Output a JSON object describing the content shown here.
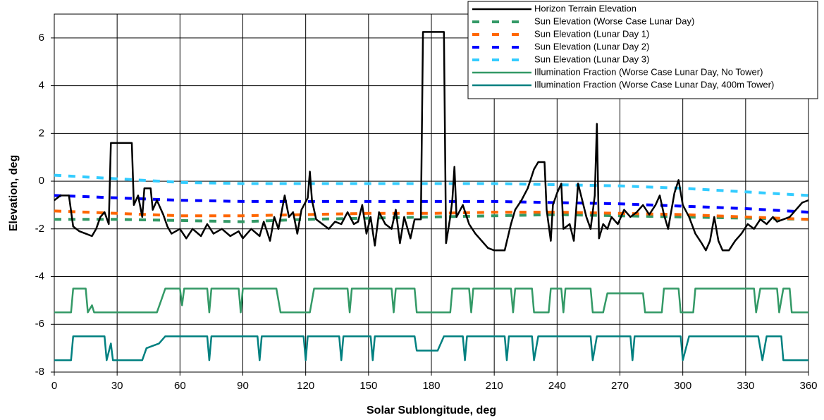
{
  "chart_data": {
    "type": "line",
    "xlabel": "Solar Sublongitude, deg",
    "ylabel": "Elevation, deg",
    "xlim": [
      0,
      360
    ],
    "xticks": [
      0,
      30,
      60,
      90,
      120,
      150,
      180,
      210,
      240,
      270,
      300,
      330,
      360
    ],
    "ylim": [
      -8,
      7
    ],
    "yticks": [
      -8,
      -6,
      -4,
      -2,
      0,
      2,
      4,
      6
    ],
    "grid": true,
    "legend": "upper right",
    "series": [
      {
        "name": "Horizon Terrain Elevation",
        "color": "#000000",
        "style": "solid",
        "x": [
          0,
          3,
          7,
          9,
          12,
          15,
          18,
          20,
          22,
          24,
          26,
          27,
          37,
          38,
          40,
          42,
          43,
          46,
          47,
          49,
          52,
          54,
          56,
          60,
          63,
          66,
          70,
          73,
          76,
          80,
          84,
          88,
          90,
          94,
          98,
          100,
          103,
          105,
          107,
          110,
          112,
          114,
          116,
          118,
          121,
          122,
          123,
          125,
          128,
          131,
          134,
          137,
          140,
          143,
          145,
          147,
          149,
          151,
          153,
          155,
          158,
          161,
          163,
          165,
          167,
          170,
          172,
          175,
          176,
          186,
          187,
          189,
          190,
          191,
          192,
          195,
          198,
          201,
          204,
          207,
          210,
          215,
          218,
          220,
          223,
          226,
          229,
          231,
          234,
          235,
          237,
          238,
          240,
          242,
          243,
          246,
          248,
          250,
          252,
          254,
          256,
          258,
          259,
          260,
          262,
          264,
          266,
          269,
          272,
          275,
          278,
          281,
          284,
          287,
          289,
          291,
          293,
          296,
          298,
          300,
          303,
          306,
          309,
          311,
          313,
          315,
          317,
          319,
          322,
          325,
          328,
          331,
          334,
          337,
          340,
          343,
          345,
          348,
          351,
          354,
          357,
          360
        ],
        "values": [
          -0.8,
          -0.6,
          -0.6,
          -1.9,
          -2.1,
          -2.2,
          -2.3,
          -2.0,
          -1.5,
          -1.3,
          -1.8,
          1.6,
          1.6,
          -1.0,
          -0.6,
          -1.5,
          -0.3,
          -0.3,
          -1.2,
          -0.8,
          -1.4,
          -1.9,
          -2.2,
          -2.0,
          -2.4,
          -2.0,
          -2.3,
          -1.8,
          -2.2,
          -2.0,
          -2.3,
          -2.1,
          -2.4,
          -2.0,
          -2.3,
          -1.7,
          -2.5,
          -1.5,
          -2.0,
          -0.6,
          -1.5,
          -1.3,
          -2.2,
          -1.2,
          -0.7,
          0.4,
          -0.8,
          -1.6,
          -1.8,
          -2.0,
          -1.7,
          -1.8,
          -1.3,
          -1.8,
          -1.7,
          -1.0,
          -2.2,
          -1.5,
          -2.7,
          -1.3,
          -1.8,
          -2.0,
          -1.2,
          -2.6,
          -1.5,
          -2.4,
          -1.6,
          -1.6,
          6.25,
          6.25,
          -2.6,
          -1.5,
          -0.8,
          0.6,
          -1.5,
          -1.0,
          -1.8,
          -2.2,
          -2.5,
          -2.8,
          -2.9,
          -2.9,
          -1.8,
          -1.2,
          -0.8,
          -0.3,
          0.5,
          0.8,
          0.8,
          -1.2,
          -2.5,
          -1.0,
          -0.5,
          -0.1,
          -2.0,
          -1.8,
          -2.5,
          -0.1,
          -0.8,
          -1.5,
          -2.0,
          -0.6,
          2.4,
          -2.4,
          -1.8,
          -2.0,
          -1.5,
          -1.8,
          -1.2,
          -1.5,
          -1.3,
          -1.0,
          -1.4,
          -1.0,
          -0.6,
          -1.4,
          -2.0,
          -0.5,
          0.05,
          -1.0,
          -1.5,
          -2.2,
          -2.6,
          -2.9,
          -2.5,
          -1.5,
          -2.5,
          -2.9,
          -2.9,
          -2.5,
          -2.2,
          -1.8,
          -2.0,
          -1.6,
          -1.8,
          -1.5,
          -1.7,
          -1.6,
          -1.5,
          -1.2,
          -0.9,
          -0.8
        ]
      },
      {
        "name": "Sun Elevation (Worse Case Lunar Day)",
        "color": "#339966",
        "style": "dashed",
        "x": [
          0,
          30,
          60,
          90,
          120,
          150,
          180,
          210,
          240,
          270,
          300,
          330,
          360
        ],
        "values": [
          -1.6,
          -1.6,
          -1.65,
          -1.7,
          -1.6,
          -1.55,
          -1.5,
          -1.45,
          -1.4,
          -1.45,
          -1.5,
          -1.55,
          -1.6
        ]
      },
      {
        "name": "Sun Elevation (Lunar Day 1)",
        "color": "#ff6600",
        "style": "dashed",
        "x": [
          0,
          30,
          60,
          90,
          120,
          150,
          180,
          210,
          240,
          270,
          300,
          330,
          360
        ],
        "values": [
          -1.25,
          -1.35,
          -1.45,
          -1.45,
          -1.4,
          -1.35,
          -1.35,
          -1.3,
          -1.3,
          -1.35,
          -1.4,
          -1.5,
          -1.6
        ]
      },
      {
        "name": "Sun Elevation (Lunar Day 2)",
        "color": "#0000ff",
        "style": "dashed",
        "x": [
          0,
          30,
          60,
          90,
          120,
          150,
          180,
          210,
          240,
          270,
          300,
          330,
          360
        ],
        "values": [
          -0.6,
          -0.7,
          -0.8,
          -0.85,
          -0.85,
          -0.85,
          -0.85,
          -0.85,
          -0.9,
          -0.95,
          -1.05,
          -1.15,
          -1.3
        ]
      },
      {
        "name": "Sun Elevation (Lunar Day 3)",
        "color": "#33ccff",
        "style": "dashed",
        "x": [
          0,
          30,
          60,
          90,
          120,
          150,
          180,
          210,
          240,
          270,
          300,
          330,
          360
        ],
        "values": [
          0.25,
          0.1,
          -0.05,
          -0.1,
          -0.1,
          -0.1,
          -0.1,
          -0.1,
          -0.15,
          -0.2,
          -0.3,
          -0.45,
          -0.6
        ]
      },
      {
        "name": "Illumination Fraction (Worse Case Lunar Day, No Tower)",
        "color": "#339966",
        "style": "solid",
        "x": [
          0,
          8,
          9,
          15,
          16,
          18,
          19,
          49,
          51,
          53,
          60,
          61,
          62,
          73,
          74,
          75,
          88,
          89,
          90,
          106,
          108,
          122,
          124,
          140,
          141,
          142,
          161,
          162,
          163,
          172,
          173,
          189,
          190,
          198,
          199,
          200,
          218,
          219,
          220,
          228,
          229,
          236,
          237,
          242,
          243,
          244,
          256,
          257,
          262,
          264,
          281,
          282,
          290,
          291,
          298,
          299,
          305,
          306,
          334,
          335,
          337,
          345,
          346,
          348,
          351,
          352,
          360
        ],
        "values": [
          -5.5,
          -5.5,
          -4.5,
          -4.5,
          -5.5,
          -5.2,
          -5.5,
          -5.5,
          -5.0,
          -4.5,
          -4.5,
          -5.2,
          -4.5,
          -4.5,
          -5.5,
          -4.5,
          -4.5,
          -5.5,
          -4.5,
          -4.5,
          -5.5,
          -5.5,
          -4.5,
          -4.5,
          -5.5,
          -4.5,
          -4.5,
          -5.5,
          -4.5,
          -4.5,
          -5.5,
          -5.5,
          -4.5,
          -4.5,
          -5.5,
          -4.5,
          -4.5,
          -5.5,
          -4.5,
          -4.5,
          -5.5,
          -5.5,
          -4.5,
          -4.5,
          -5.5,
          -4.5,
          -4.5,
          -5.5,
          -5.5,
          -4.7,
          -4.7,
          -5.5,
          -5.5,
          -4.5,
          -4.5,
          -5.5,
          -5.5,
          -4.5,
          -4.5,
          -5.5,
          -4.5,
          -4.5,
          -5.5,
          -4.5,
          -4.5,
          -5.5,
          -5.5
        ]
      },
      {
        "name": "Illumination Fraction (Worse Case Lunar Day, 400m Tower)",
        "color": "#008080",
        "style": "solid",
        "x": [
          0,
          8,
          9,
          24,
          25,
          27,
          28,
          42,
          44,
          50,
          53,
          73,
          74,
          75,
          97,
          98,
          99,
          119,
          120,
          121,
          136,
          137,
          138,
          151,
          152,
          153,
          172,
          173,
          183,
          186,
          195,
          196,
          197,
          215,
          216,
          217,
          228,
          229,
          231,
          256,
          257,
          259,
          275,
          276,
          277,
          299,
          300,
          303,
          336,
          338,
          340,
          347,
          348,
          360
        ],
        "values": [
          -7.5,
          -7.5,
          -6.5,
          -6.5,
          -7.5,
          -6.8,
          -7.5,
          -7.5,
          -7.0,
          -6.8,
          -6.5,
          -6.5,
          -7.5,
          -6.5,
          -6.5,
          -7.5,
          -6.5,
          -6.5,
          -7.5,
          -6.5,
          -6.5,
          -7.5,
          -6.5,
          -6.5,
          -7.5,
          -6.5,
          -6.5,
          -7.1,
          -7.1,
          -6.5,
          -6.5,
          -7.5,
          -6.5,
          -6.5,
          -7.5,
          -6.5,
          -6.5,
          -7.5,
          -6.5,
          -6.5,
          -7.5,
          -6.5,
          -6.5,
          -7.5,
          -6.5,
          -6.5,
          -7.5,
          -6.5,
          -6.5,
          -7.5,
          -6.5,
          -6.5,
          -7.5,
          -7.5
        ]
      }
    ]
  }
}
